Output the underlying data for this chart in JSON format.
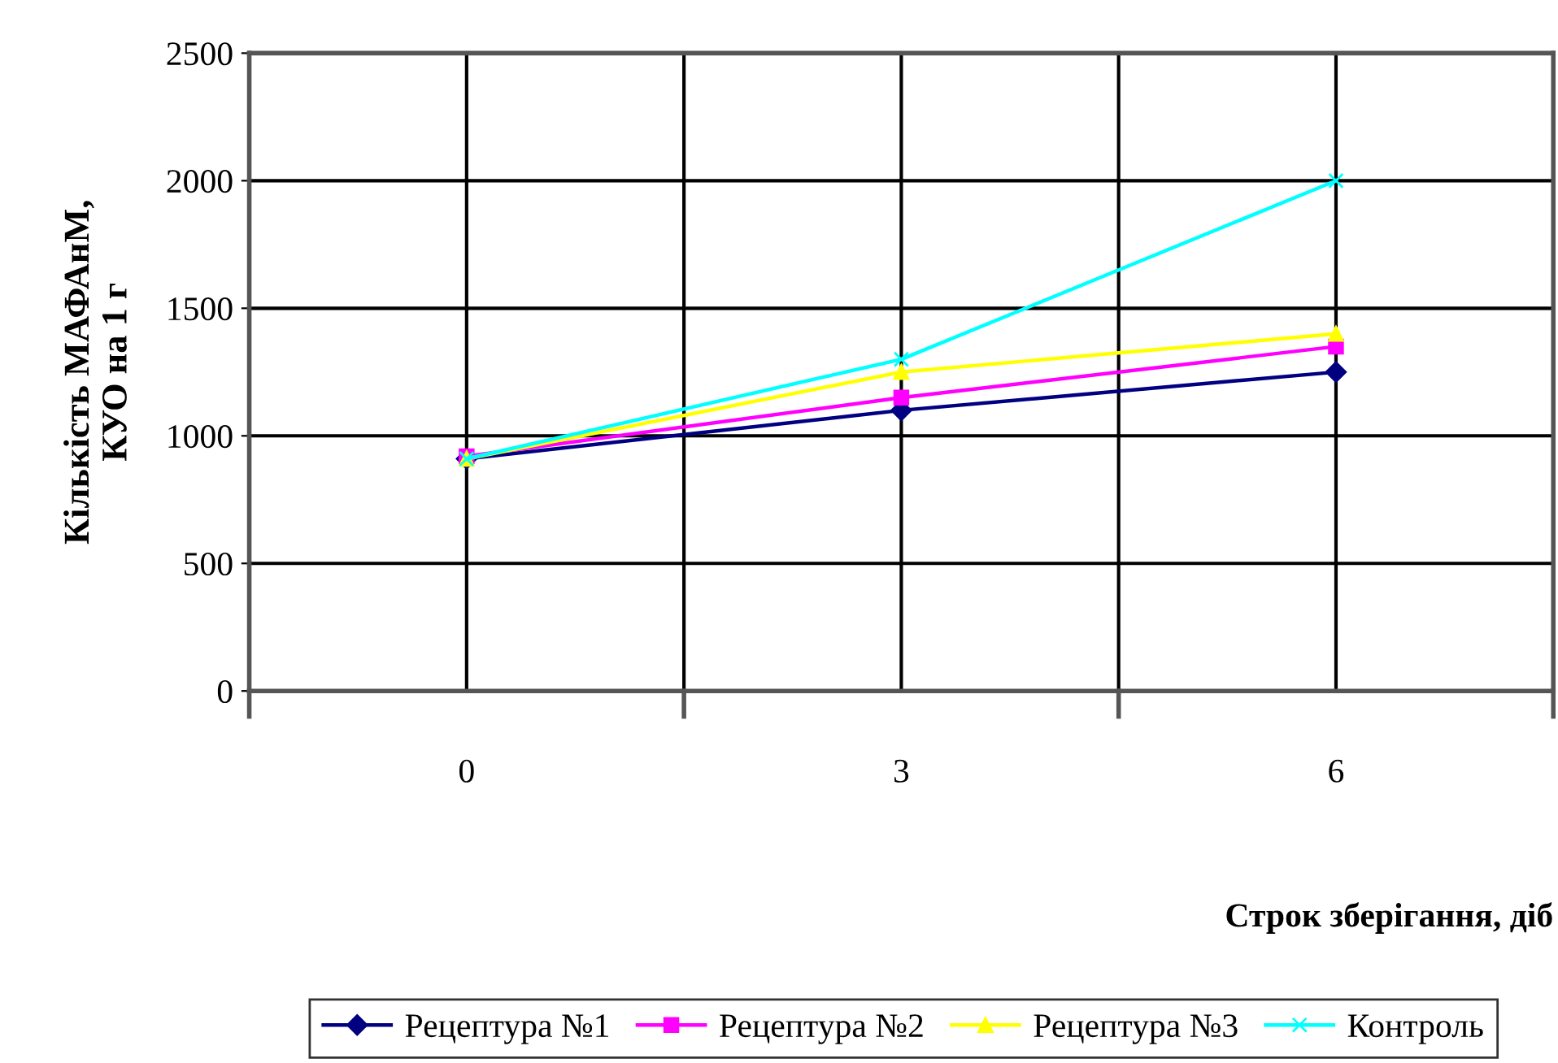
{
  "chart_data": {
    "type": "line",
    "xlabel": "Строк зберігання, діб",
    "ylabel": "Кількість МАФАнМ,\nКУО на 1 г",
    "categories": [
      "0",
      "3",
      "6"
    ],
    "series": [
      {
        "name": "Рецептура №1",
        "color": "#000080",
        "values": [
          910,
          1100,
          1250
        ],
        "marker": "diamond"
      },
      {
        "name": "Рецептура №2",
        "color": "#ff00ff",
        "values": [
          920,
          1150,
          1350
        ],
        "marker": "square"
      },
      {
        "name": "Рецептура №3",
        "color": "#ffff00",
        "values": [
          910,
          1250,
          1400
        ],
        "marker": "triangle"
      },
      {
        "name": "Контроль",
        "color": "#00ffff",
        "values": [
          910,
          1300,
          2000
        ],
        "marker": "cross"
      }
    ],
    "ylim": [
      0,
      2500
    ],
    "yticks": [
      0,
      500,
      1000,
      1500,
      2000,
      2500
    ],
    "grid": true,
    "legend": "bottom"
  }
}
